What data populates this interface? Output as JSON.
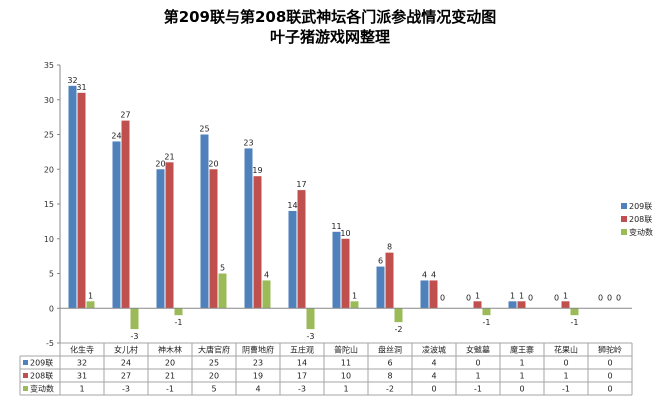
{
  "title": {
    "line1": "第209联与第208联武神坛各门派参战情况变动图",
    "line2": "叶子猪游戏网整理"
  },
  "chart_data": {
    "type": "bar",
    "categories": [
      "化生寺",
      "女儿村",
      "神木林",
      "大唐官府",
      "阴曹地府",
      "五庄观",
      "普陀山",
      "盘丝洞",
      "凌波城",
      "女魃墓",
      "魔王寨",
      "花果山",
      "狮驼岭"
    ],
    "series": [
      {
        "name": "209联",
        "color": "#4f81bd",
        "values": [
          32,
          24,
          20,
          25,
          23,
          14,
          11,
          6,
          4,
          0,
          1,
          0,
          0
        ]
      },
      {
        "name": "208联",
        "color": "#c0504d",
        "values": [
          31,
          27,
          21,
          20,
          19,
          17,
          10,
          8,
          4,
          1,
          1,
          1,
          0
        ]
      },
      {
        "name": "变动数",
        "color": "#9bbb59",
        "values": [
          1,
          -3,
          -1,
          5,
          4,
          -3,
          1,
          -2,
          0,
          -1,
          0,
          -1,
          0
        ]
      }
    ],
    "ylim": [
      -5,
      35
    ],
    "yticks": [
      -5,
      0,
      5,
      10,
      15,
      20,
      25,
      30,
      35
    ],
    "grid": false,
    "legend_position": "right",
    "data_table": true
  }
}
